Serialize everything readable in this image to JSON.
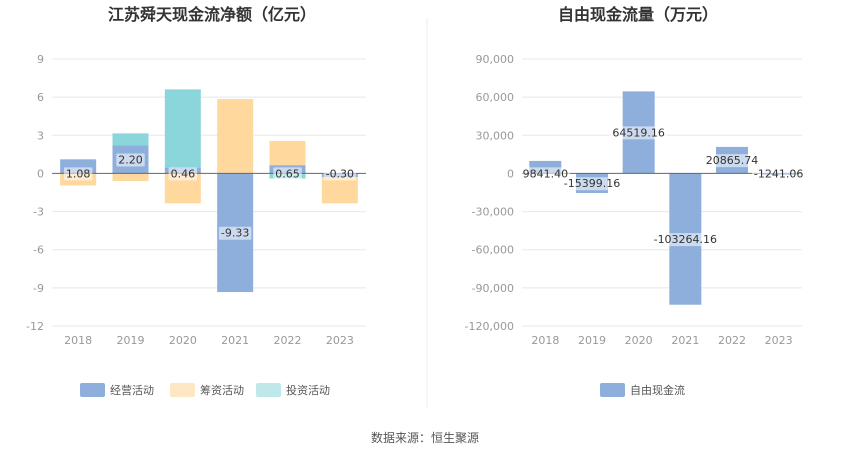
{
  "source_text": "数据来源：恒生聚源",
  "colors": {
    "operating": "#8eaedb",
    "financing": "#fed89d",
    "investing": "#8ad6da",
    "free_cash": "#8eaedb",
    "grid": "#e8e8e8",
    "zero": "#666666",
    "divider": "#eeeeee"
  },
  "chart_data": [
    {
      "type": "bar",
      "stacked": true,
      "title": "江苏舜天现金流净额（亿元）",
      "categories": [
        "2018",
        "2019",
        "2020",
        "2021",
        "2022",
        "2023"
      ],
      "ylim": [
        -12,
        9
      ],
      "yticks": [
        -12,
        -9,
        -6,
        -3,
        0,
        3,
        6,
        9
      ],
      "ytick_labels": [
        "-12",
        "-9",
        "-6",
        "-3",
        "0",
        "3",
        "6",
        "9"
      ],
      "grid": true,
      "legend_position": "bottom",
      "series": [
        {
          "name": "经营活动",
          "color_key": "operating",
          "values": [
            1.08,
            2.2,
            0.46,
            -9.33,
            0.65,
            -0.3
          ]
        },
        {
          "name": "筹资活动",
          "color_key": "financing",
          "values": [
            -0.95,
            -0.6,
            -2.35,
            5.85,
            1.9,
            -2.05
          ]
        },
        {
          "name": "投资活动",
          "color_key": "investing",
          "values": [
            0.05,
            0.95,
            6.15,
            0.0,
            -0.4,
            0.0
          ]
        }
      ],
      "data_labels": [
        "1.08",
        "2.20",
        "0.46",
        "-9.33",
        "0.65",
        "-0.30"
      ]
    },
    {
      "type": "bar",
      "title": "自由现金流量（万元）",
      "categories": [
        "2018",
        "2019",
        "2020",
        "2021",
        "2022",
        "2023"
      ],
      "ylim": [
        -120000,
        90000
      ],
      "yticks": [
        -120000,
        -90000,
        -60000,
        -30000,
        0,
        30000,
        60000,
        90000
      ],
      "ytick_labels": [
        "-120,000",
        "-90,000",
        "-60,000",
        "-30,000",
        "0",
        "30,000",
        "60,000",
        "90,000"
      ],
      "grid": true,
      "legend_position": "bottom",
      "series": [
        {
          "name": "自由现金流",
          "color_key": "free_cash",
          "values": [
            9841.4,
            -15399.16,
            64519.16,
            -103264.16,
            20865.74,
            -1241.06
          ]
        }
      ],
      "data_labels": [
        "9841.40",
        "-15399.16",
        "64519.16",
        "-103264.16",
        "20865.74",
        "-1241.06"
      ]
    }
  ]
}
